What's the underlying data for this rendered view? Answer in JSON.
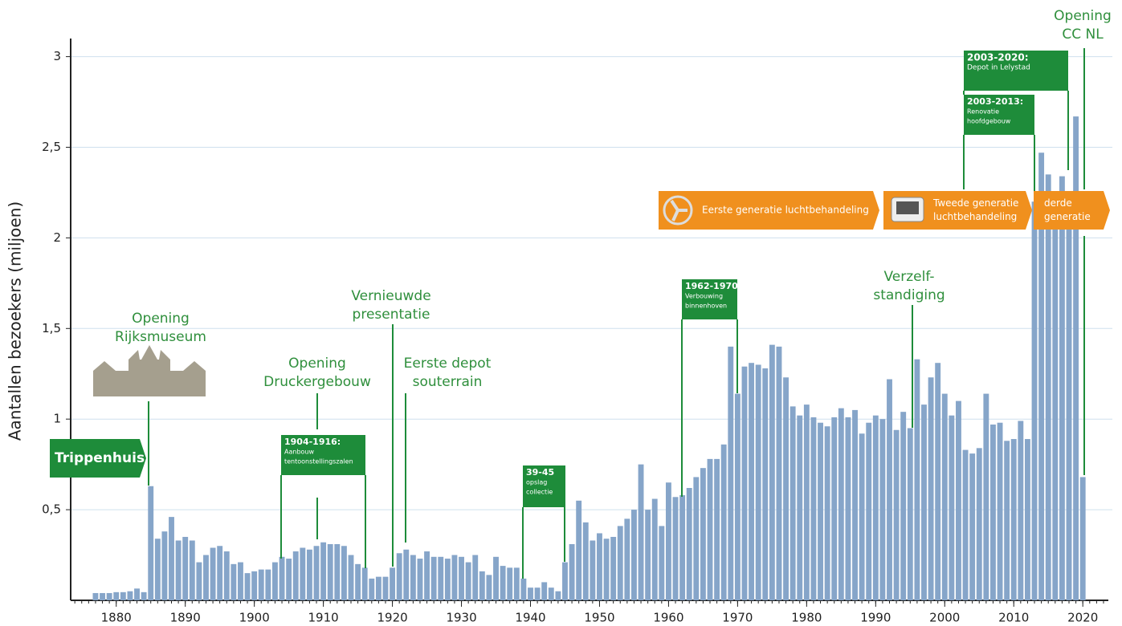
{
  "chart_data": {
    "type": "bar",
    "y_label": "Aantallen bezoekers (miljoen)",
    "color": "#86a5c9",
    "grid": true,
    "ylim": [
      0,
      3.1
    ],
    "yticks": [
      {
        "value": 0.5,
        "label": "0,5"
      },
      1,
      {
        "value": 1.5,
        "label": "1,5"
      },
      2,
      {
        "value": 2.5,
        "label": "2,5"
      },
      3
    ],
    "xlim": [
      1873.4,
      2023.7
    ],
    "xticks": [
      1880,
      1890,
      1900,
      1910,
      1920,
      1930,
      1940,
      1950,
      1960,
      1970,
      1980,
      1990,
      2000,
      2010,
      2020
    ],
    "x": [
      1877,
      1878,
      1879,
      1880,
      1881,
      1882,
      1883,
      1884,
      1885,
      1886,
      1887,
      1888,
      1889,
      1890,
      1891,
      1892,
      1893,
      1894,
      1895,
      1896,
      1897,
      1898,
      1899,
      1900,
      1901,
      1902,
      1903,
      1904,
      1905,
      1906,
      1907,
      1908,
      1909,
      1910,
      1911,
      1912,
      1913,
      1914,
      1915,
      1916,
      1917,
      1918,
      1919,
      1920,
      1921,
      1922,
      1923,
      1924,
      1925,
      1926,
      1927,
      1928,
      1929,
      1930,
      1931,
      1932,
      1933,
      1934,
      1935,
      1936,
      1937,
      1938,
      1939,
      1940,
      1941,
      1942,
      1943,
      1944,
      1945,
      1946,
      1947,
      1948,
      1949,
      1950,
      1951,
      1952,
      1953,
      1954,
      1955,
      1956,
      1957,
      1958,
      1959,
      1960,
      1961,
      1962,
      1963,
      1964,
      1965,
      1966,
      1967,
      1968,
      1969,
      1970,
      1971,
      1972,
      1973,
      1974,
      1975,
      1976,
      1977,
      1978,
      1979,
      1980,
      1981,
      1982,
      1983,
      1984,
      1985,
      1986,
      1987,
      1988,
      1989,
      1990,
      1991,
      1992,
      1993,
      1994,
      1995,
      1996,
      1997,
      1998,
      1999,
      2000,
      2001,
      2002,
      2003,
      2004,
      2005,
      2006,
      2007,
      2008,
      2009,
      2010,
      2011,
      2012,
      2013,
      2014,
      2015,
      2016,
      2017,
      2018,
      2019,
      2020
    ],
    "values": [
      0.04,
      0.04,
      0.04,
      0.045,
      0.045,
      0.05,
      0.065,
      0.045,
      0.63,
      0.34,
      0.38,
      0.46,
      0.33,
      0.35,
      0.33,
      0.21,
      0.25,
      0.29,
      0.3,
      0.27,
      0.2,
      0.21,
      0.15,
      0.16,
      0.17,
      0.17,
      0.21,
      0.24,
      0.23,
      0.27,
      0.29,
      0.28,
      0.3,
      0.32,
      0.31,
      0.31,
      0.3,
      0.25,
      0.2,
      0.18,
      0.12,
      0.13,
      0.13,
      0.18,
      0.26,
      0.28,
      0.25,
      0.23,
      0.27,
      0.24,
      0.24,
      0.23,
      0.25,
      0.24,
      0.21,
      0.25,
      0.16,
      0.14,
      0.24,
      0.19,
      0.18,
      0.18,
      0.12,
      0.07,
      0.07,
      0.1,
      0.07,
      0.05,
      0.21,
      0.31,
      0.55,
      0.43,
      0.33,
      0.37,
      0.34,
      0.35,
      0.41,
      0.45,
      0.5,
      0.75,
      0.5,
      0.56,
      0.41,
      0.65,
      0.57,
      0.58,
      0.62,
      0.68,
      0.73,
      0.78,
      0.78,
      0.86,
      1.4,
      1.14,
      1.29,
      1.31,
      1.3,
      1.28,
      1.41,
      1.4,
      1.23,
      1.07,
      1.02,
      1.08,
      1.01,
      0.98,
      0.96,
      1.01,
      1.06,
      1.01,
      1.05,
      0.92,
      0.98,
      1.02,
      1.0,
      1.22,
      0.94,
      1.04,
      0.95,
      1.33,
      1.08,
      1.23,
      1.31,
      1.14,
      1.02,
      1.1,
      0.83,
      0.81,
      0.84,
      1.14,
      0.97,
      0.98,
      0.88,
      0.89,
      0.99,
      0.89,
      2.2,
      2.47,
      2.35,
      2.2,
      2.34,
      2.2,
      2.67,
      0.68
    ],
    "annotations": [
      {
        "lines": [
          "Opening",
          "Rijksmuseum"
        ]
      },
      {
        "lines": [
          "Opening",
          "Druckergebouw"
        ]
      },
      {
        "lines": [
          "Vernieuwde",
          "presentatie"
        ]
      },
      {
        "lines": [
          "Eerste depot",
          "souterrain"
        ]
      },
      {
        "lines": [
          "Verzelf-",
          "standiging"
        ]
      },
      {
        "lines": [
          "Opening",
          "CC NL"
        ]
      }
    ],
    "boxes": [
      {
        "lines": [
          "Trippenhuis"
        ]
      },
      {
        "lines": [
          "1904-1916:",
          "Aanbouw",
          "tentoonstellingszalen"
        ]
      },
      {
        "lines": [
          "39-45",
          "opslag",
          "collectie"
        ]
      },
      {
        "lines": [
          "1962-1970:",
          "Verbouwing",
          "binnenhoven"
        ]
      },
      {
        "lines": [
          "2003-2020:",
          "Depot in Lelystad"
        ]
      },
      {
        "lines": [
          "2003-2013:",
          "Renovatie",
          "hoofdgebouw"
        ]
      }
    ],
    "banners": [
      {
        "lines": [
          "Eerste generatie luchtbehandeling"
        ]
      },
      {
        "lines": [
          "Tweede generatie",
          "luchtbehandeling"
        ]
      },
      {
        "lines": [
          "derde",
          "generatie"
        ]
      }
    ]
  }
}
